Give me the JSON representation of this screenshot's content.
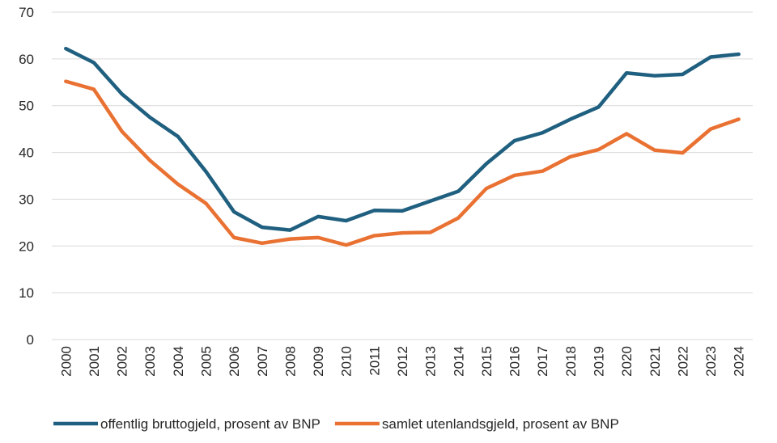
{
  "chart_data": {
    "type": "line",
    "title": "",
    "xlabel": "",
    "ylabel": "",
    "ylim": [
      0,
      70
    ],
    "yticks": [
      "0",
      "10",
      "20",
      "30",
      "40",
      "50",
      "60",
      "70"
    ],
    "grid": true,
    "legend_position": "bottom",
    "categories": [
      "2000",
      "2001",
      "2002",
      "2003",
      "2004",
      "2005",
      "2006",
      "2007",
      "2008",
      "2009",
      "2010",
      "2011",
      "2012",
      "2013",
      "2014",
      "2015",
      "2016",
      "2017",
      "2018",
      "2019",
      "2020",
      "2021",
      "2022",
      "2023",
      "2024"
    ],
    "series": [
      {
        "name": "offentlig bruttogjeld, prosent av BNP",
        "color": "#1f5f7f",
        "values": [
          62.2,
          59.2,
          52.5,
          47.5,
          43.4,
          35.9,
          27.3,
          24.0,
          23.4,
          26.3,
          25.4,
          27.6,
          27.5,
          29.6,
          31.7,
          37.6,
          42.5,
          44.2,
          47.1,
          49.7,
          57.0,
          56.4,
          56.7,
          60.4,
          61.0
        ]
      },
      {
        "name": "samlet utenlandsgjeld, prosent av BNP",
        "color": "#e97132",
        "values": [
          55.2,
          53.5,
          44.5,
          38.3,
          33.2,
          29.1,
          21.8,
          20.6,
          21.5,
          21.8,
          20.2,
          22.2,
          22.8,
          22.9,
          26.0,
          32.3,
          35.1,
          36.0,
          39.1,
          40.6,
          44.0,
          40.5,
          39.9,
          45.0,
          47.1
        ]
      }
    ]
  }
}
